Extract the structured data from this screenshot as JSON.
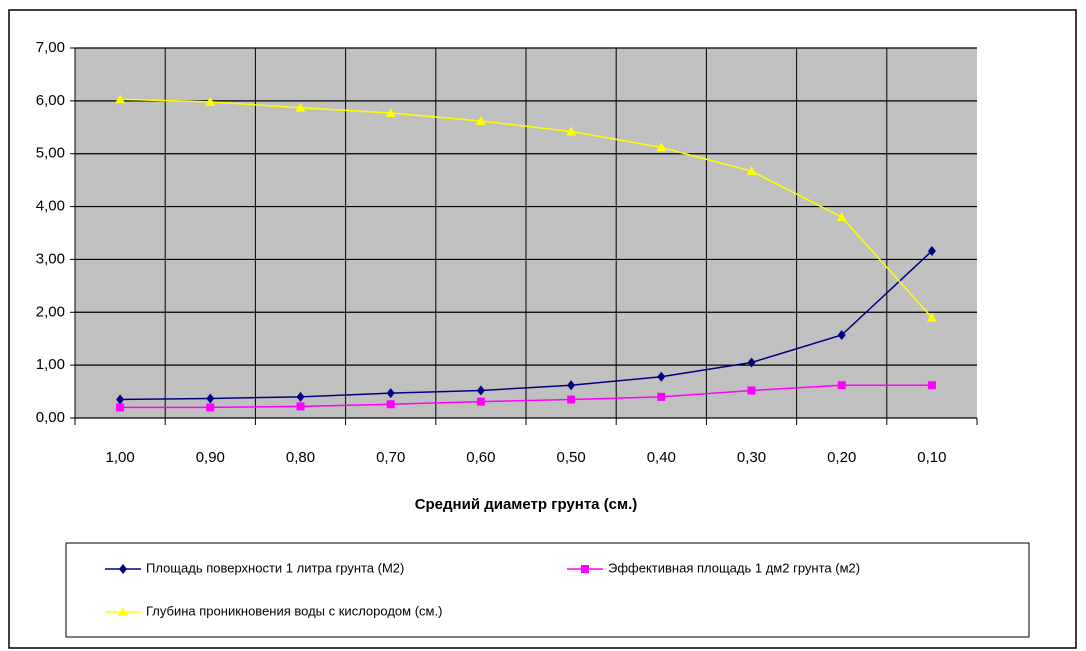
{
  "chart_data": {
    "type": "line",
    "xlabel": "Средний диаметр грунта (см.)",
    "categories": [
      "1,00",
      "0,90",
      "0,80",
      "0,70",
      "0,60",
      "0,50",
      "0,40",
      "0,30",
      "0,20",
      "0,10"
    ],
    "series": [
      {
        "name": "Площадь поверхности 1 литра грунта (М2)",
        "color": "#000080",
        "marker": "diamond",
        "values": [
          0.35,
          0.37,
          0.4,
          0.47,
          0.52,
          0.62,
          0.78,
          1.05,
          1.57,
          3.16
        ]
      },
      {
        "name": "Эффективная площадь 1 дм2 грунта (м2)",
        "color": "#ff00ff",
        "marker": "square",
        "values": [
          0.2,
          0.2,
          0.22,
          0.26,
          0.31,
          0.35,
          0.4,
          0.52,
          0.62,
          0.62
        ]
      },
      {
        "name": "Глубина проникновения воды с кислородом (см.)",
        "color": "#ffff00",
        "marker": "triangle",
        "values": [
          6.03,
          5.98,
          5.87,
          5.77,
          5.62,
          5.42,
          5.12,
          4.67,
          3.8,
          1.9
        ]
      }
    ],
    "ylim": [
      0,
      7
    ],
    "yticks": [
      {
        "value": 0,
        "label": "0,00"
      },
      {
        "value": 1,
        "label": "1,00"
      },
      {
        "value": 2,
        "label": "2,00"
      },
      {
        "value": 3,
        "label": "3,00"
      },
      {
        "value": 4,
        "label": "4,00"
      },
      {
        "value": 5,
        "label": "5,00"
      },
      {
        "value": 6,
        "label": "6,00"
      },
      {
        "value": 7,
        "label": "7,00"
      }
    ],
    "grid": true,
    "legend": "bottom"
  }
}
